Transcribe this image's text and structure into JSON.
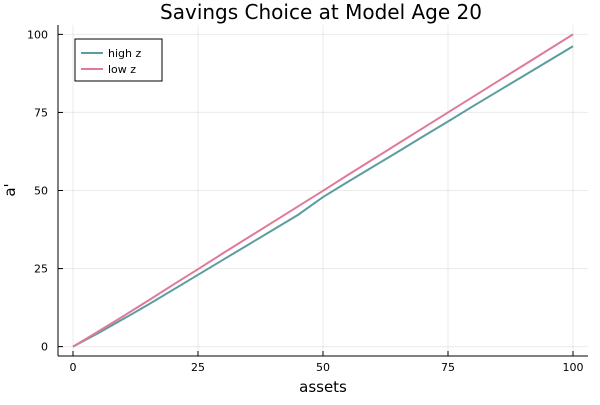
{
  "chart_data": {
    "type": "line",
    "title": "Savings Choice at Model Age 20",
    "xlabel": "assets",
    "ylabel": "a'",
    "xlim": [
      -3,
      103
    ],
    "ylim": [
      -3,
      103
    ],
    "xticks": [
      0,
      25,
      50,
      75,
      100
    ],
    "yticks": [
      0,
      25,
      50,
      75,
      100
    ],
    "xtick_labels": [
      "0",
      "25",
      "50",
      "75",
      "100"
    ],
    "ytick_labels": [
      "0",
      "25",
      "50",
      "75",
      "100"
    ],
    "grid": true,
    "legend_position": "top-left",
    "x": [
      0,
      5,
      10,
      15,
      20,
      25,
      30,
      35,
      40,
      45,
      50,
      55,
      60,
      65,
      70,
      75,
      80,
      85,
      90,
      95,
      100
    ],
    "series": [
      {
        "name": "high z",
        "color": "#5b9d9f",
        "values": [
          0,
          4.3,
          8.8,
          13.4,
          18.2,
          23.0,
          27.8,
          32.6,
          37.4,
          42.2,
          47.9,
          52.8,
          57.6,
          62.4,
          67.3,
          72.1,
          77.0,
          81.8,
          86.6,
          91.4,
          96.2
        ]
      },
      {
        "name": "low z",
        "color": "#e07a9a",
        "values": [
          0,
          4.8,
          9.7,
          14.7,
          19.8,
          24.8,
          29.9,
          34.9,
          39.9,
          44.9,
          49.9,
          55.0,
          60.0,
          65.0,
          70.0,
          75.0,
          80.0,
          85.0,
          90.0,
          95.0,
          100.0
        ]
      }
    ]
  }
}
